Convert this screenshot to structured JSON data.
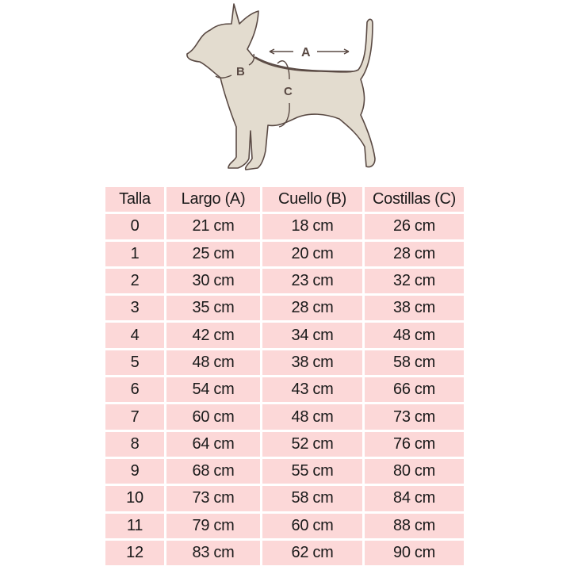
{
  "illustration": {
    "labels": {
      "a": "A",
      "b": "B",
      "c": "C"
    },
    "colors": {
      "body": "#e3dccf",
      "outline": "#5a4a44"
    }
  },
  "table": {
    "headers": [
      "Talla",
      "Largo (A)",
      "Cuello (B)",
      "Costillas (C)"
    ],
    "rows": [
      [
        "0",
        "21 cm",
        "18 cm",
        "26 cm"
      ],
      [
        "1",
        "25 cm",
        "20 cm",
        "28 cm"
      ],
      [
        "2",
        "30 cm",
        "23 cm",
        "32 cm"
      ],
      [
        "3",
        "35 cm",
        "28 cm",
        "38 cm"
      ],
      [
        "4",
        "42 cm",
        "34 cm",
        "48 cm"
      ],
      [
        "5",
        "48 cm",
        "38 cm",
        "58 cm"
      ],
      [
        "6",
        "54 cm",
        "43 cm",
        "66 cm"
      ],
      [
        "7",
        "60 cm",
        "48 cm",
        "73 cm"
      ],
      [
        "8",
        "64 cm",
        "52 cm",
        "76 cm"
      ],
      [
        "9",
        "68 cm",
        "55 cm",
        "80 cm"
      ],
      [
        "10",
        "73 cm",
        "58 cm",
        "84 cm"
      ],
      [
        "11",
        "79 cm",
        "60 cm",
        "88 cm"
      ],
      [
        "12",
        "83 cm",
        "62 cm",
        "90 cm"
      ]
    ],
    "cell_color": "#fcd8d8"
  }
}
